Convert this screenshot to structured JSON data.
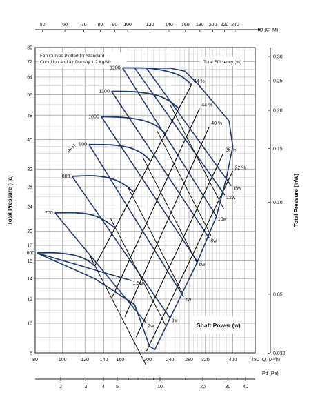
{
  "chart_data": {
    "type": "line",
    "title": "Fan Curves Plotted for Standard Condition and air Density 1.2 Kg/M³",
    "title_lines": [
      "Fan Curves Plotted for Standard",
      "Condition and air Density 1.2 Kg/M³"
    ],
    "bottom_axis": {
      "label": "Q (M³/h)",
      "scale": "log",
      "range": [
        80,
        480
      ],
      "ticks": [
        "80",
        "100",
        "120",
        "140",
        "160",
        "200",
        "240",
        "280",
        "320",
        "400",
        "480"
      ],
      "tick_values": [
        80,
        100,
        120,
        140,
        160,
        200,
        240,
        280,
        320,
        400,
        480
      ]
    },
    "top_axis": {
      "label": "Q (CFM)",
      "scale": "log",
      "ticks": [
        "50",
        "60",
        "70",
        "80",
        "90",
        "100",
        "120",
        "140",
        "160",
        "180",
        "200",
        "220",
        "240"
      ],
      "tick_values": [
        50,
        60,
        70,
        80,
        90,
        100,
        120,
        140,
        160,
        180,
        200,
        220,
        240
      ]
    },
    "left_axis": {
      "label": "Total Pressure (Pa)",
      "scale": "log",
      "range": [
        8,
        80
      ],
      "ticks": [
        "8",
        "10",
        "12",
        "14",
        "16",
        "18",
        "20",
        "24",
        "28",
        "32",
        "40",
        "48",
        "56",
        "64",
        "72",
        "80"
      ],
      "tick_values": [
        8,
        10,
        12,
        14,
        16,
        18,
        20,
        24,
        28,
        32,
        40,
        48,
        56,
        64,
        72,
        80
      ]
    },
    "right_axis": {
      "label": "Total Pressure (inW)",
      "scale": "log",
      "ticks": [
        "0.032",
        "0.05",
        "0.10",
        "0.15",
        "0.20",
        "0.25",
        "0.30"
      ],
      "tick_values": [
        0.032,
        0.05,
        0.1,
        0.15,
        0.2,
        0.25,
        0.3
      ]
    },
    "bottom_axis_2": {
      "label": "Pd (Pa)",
      "scale": "log",
      "ticks": [
        "2",
        "3",
        "4",
        "5",
        "10",
        "20",
        "30",
        "40"
      ],
      "tick_values": [
        2,
        3,
        4,
        5,
        10,
        20,
        30,
        40
      ]
    },
    "rpm_label": "RPM",
    "efficiency_label": "Total Efficiency (%)",
    "power_label": "Shaft Power (w)",
    "rpm_curves": [
      {
        "rpm": "600",
        "points": [
          [
            81,
            17
          ],
          [
            95,
            17
          ],
          [
            110,
            16.7
          ],
          [
            122,
            16.1
          ],
          [
            130,
            15.4
          ]
        ]
      },
      {
        "rpm": "700",
        "points": [
          [
            94,
            23
          ],
          [
            112,
            23
          ],
          [
            128,
            22.6
          ],
          [
            142,
            21.6
          ],
          [
            152,
            20.6
          ]
        ]
      },
      {
        "rpm": "800",
        "points": [
          [
            108,
            30.3
          ],
          [
            130,
            30.4
          ],
          [
            150,
            29.7
          ],
          [
            165,
            28.5
          ],
          [
            178,
            27
          ]
        ]
      },
      {
        "rpm": "900",
        "points": [
          [
            124,
            38.5
          ],
          [
            148,
            38.4
          ],
          [
            172,
            37.6
          ],
          [
            190,
            36.1
          ],
          [
            205,
            34
          ]
        ]
      },
      {
        "rpm": "1000",
        "points": [
          [
            137,
            47.5
          ],
          [
            165,
            47.2
          ],
          [
            192,
            46.2
          ],
          [
            214,
            44.4
          ],
          [
            232,
            41.7
          ]
        ]
      },
      {
        "rpm": "1100",
        "points": [
          [
            149,
            57.5
          ],
          [
            180,
            57.3
          ],
          [
            212,
            56
          ],
          [
            236,
            53.8
          ],
          [
            258,
            50.5
          ]
        ]
      },
      {
        "rpm": "1200",
        "points": [
          [
            163,
            68.6
          ],
          [
            198,
            68.5
          ],
          [
            232,
            67
          ],
          [
            262,
            64.5
          ],
          [
            286,
            60.5
          ]
        ]
      }
    ],
    "efficiency_lines": [
      {
        "label": "44 %",
        "points": [
          [
            130,
            15.4
          ],
          [
            286,
            60.5
          ]
        ]
      },
      {
        "label": "44 %",
        "points": [
          [
            150,
            12.2
          ],
          [
            305,
            50.5
          ]
        ]
      },
      {
        "label": "40 %",
        "points": [
          [
            166,
            10.5
          ],
          [
            330,
            44
          ]
        ]
      },
      {
        "label": "26 %",
        "points": [
          [
            182,
            9
          ],
          [
            370,
            36
          ]
        ]
      },
      {
        "label": "22 %",
        "points": [
          [
            198,
            8.1
          ],
          [
            400,
            31.5
          ]
        ]
      }
    ],
    "power_lines": [
      {
        "label": "1.5w",
        "points": [
          [
            81,
            17
          ],
          [
            175,
            13.8
          ]
        ]
      },
      {
        "label": "2w",
        "points": [
          [
            94,
            23
          ],
          [
            198,
            10
          ]
        ]
      },
      {
        "label": "3w",
        "points": [
          [
            108,
            30.3
          ],
          [
            240,
            10.4
          ]
        ]
      },
      {
        "label": "4w",
        "points": [
          [
            124,
            38.5
          ],
          [
            268,
            12.2
          ]
        ]
      },
      {
        "label": "6w",
        "points": [
          [
            137,
            47.5
          ],
          [
            300,
            15.9
          ]
        ]
      },
      {
        "label": "8w",
        "points": [
          [
            149,
            57.5
          ],
          [
            330,
            19
          ]
        ]
      },
      {
        "label": "10w",
        "points": [
          [
            163,
            68.6
          ],
          [
            350,
            22.4
          ]
        ]
      },
      {
        "label": "12w",
        "points": [
          [
            180,
            68.5
          ],
          [
            375,
            26.3
          ]
        ]
      },
      {
        "label": "15w",
        "points": [
          [
            198,
            68.5
          ],
          [
            395,
            28.2
          ]
        ]
      }
    ],
    "curve_color": "#1f3a6e",
    "grid": true
  }
}
